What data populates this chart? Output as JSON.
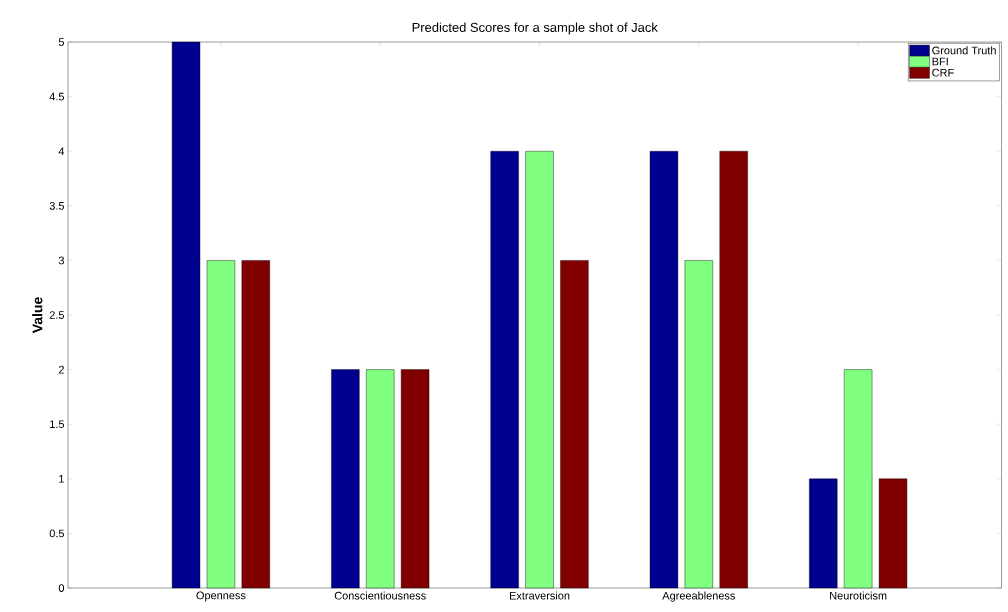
{
  "chart_data": {
    "type": "bar",
    "title": "Predicted Scores for a sample shot of Jack",
    "ylabel": "Value",
    "categories": [
      "Openness",
      "Conscientiousness",
      "Extraversion",
      "Agreeableness",
      "Neuroticism"
    ],
    "series": [
      {
        "name": "Ground Truth",
        "color": "#00008f",
        "values": [
          5,
          2,
          4,
          4,
          1
        ]
      },
      {
        "name": "BFI",
        "color": "#80ff80",
        "values": [
          3,
          2,
          4,
          3,
          2
        ]
      },
      {
        "name": "CRF",
        "color": "#800000",
        "values": [
          3,
          2,
          3,
          4,
          1
        ]
      }
    ],
    "ylim": [
      0,
      5
    ],
    "yticks": [
      0,
      0.5,
      1,
      1.5,
      2,
      2.5,
      3,
      3.5,
      4,
      4.5,
      5
    ],
    "legend": "top right",
    "grid": false
  }
}
